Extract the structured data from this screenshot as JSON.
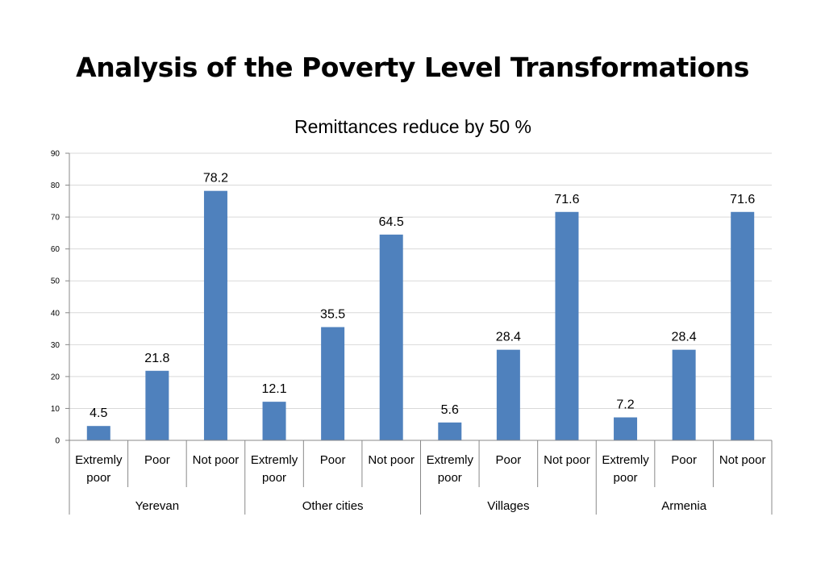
{
  "slide": {
    "title": "Analysis of the Poverty Level Transformations"
  },
  "chart_data": {
    "type": "bar",
    "title": "Remittances reduce by 50 %",
    "xlabel": "",
    "ylabel": "",
    "ylim": [
      0,
      90
    ],
    "yticks": [
      0,
      10,
      20,
      30,
      40,
      50,
      60,
      70,
      80,
      90
    ],
    "grid": true,
    "legend": "none",
    "bar_color": "#4F81BD",
    "categories": [
      "Extremly poor",
      "Poor",
      "Not poor",
      "Extremly poor",
      "Poor",
      "Not poor",
      "Extremly poor",
      "Poor",
      "Not poor",
      "Extremly poor",
      "Poor",
      "Not poor"
    ],
    "groups": [
      "Yerevan",
      "Other cities",
      "Villages",
      "Armenia"
    ],
    "values": [
      4.5,
      21.8,
      78.2,
      12.1,
      35.5,
      64.5,
      5.6,
      28.4,
      71.6,
      7.2,
      28.4,
      71.6
    ]
  }
}
